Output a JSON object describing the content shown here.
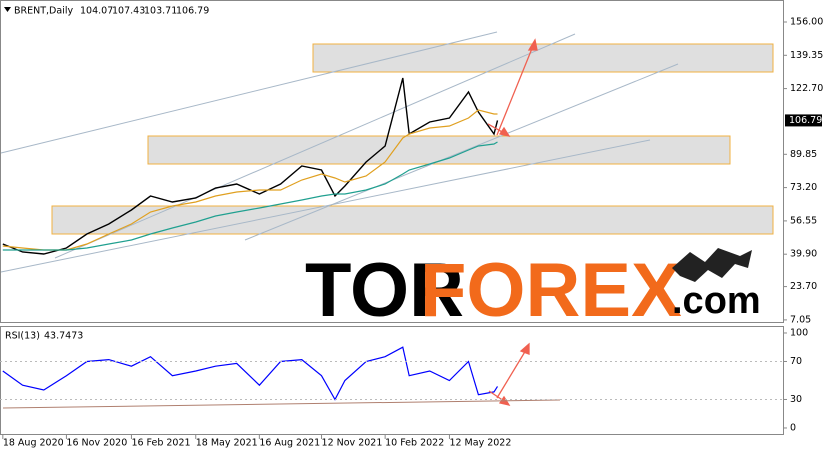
{
  "chart_data": [
    {
      "type": "line",
      "title": "BRENT,Daily",
      "ohlc": [
        104.07,
        107.43,
        103.71,
        106.79
      ],
      "x": [
        "2020-08-18",
        "2020-09-15",
        "2020-10-15",
        "2020-11-16",
        "2020-12-15",
        "2021-01-15",
        "2021-02-16",
        "2021-03-15",
        "2021-04-15",
        "2021-05-18",
        "2021-06-15",
        "2021-07-15",
        "2021-08-16",
        "2021-09-15",
        "2021-10-15",
        "2021-11-12",
        "2021-12-01",
        "2021-12-15",
        "2022-01-14",
        "2022-02-10",
        "2022-03-07",
        "2022-03-16",
        "2022-04-14",
        "2022-05-12",
        "2022-06-08",
        "2022-06-22",
        "2022-07-14",
        "2022-07-19"
      ],
      "series": [
        {
          "color": "#000000",
          "values": [
            45,
            41,
            40,
            43,
            50,
            55,
            62,
            69,
            66,
            68,
            73,
            75,
            70,
            75,
            84,
            82,
            69,
            74,
            86,
            94,
            128,
            100,
            106,
            108,
            121,
            111,
            100,
            106.79
          ]
        },
        {
          "color": "#e0a020",
          "values": [
            44,
            43,
            42,
            42,
            45,
            50,
            55,
            61,
            64,
            66,
            69,
            71,
            72,
            72,
            77,
            80,
            78,
            76,
            79,
            86,
            98,
            100,
            103,
            104,
            108,
            112,
            110,
            110
          ]
        },
        {
          "color": "#20a090",
          "values": [
            42,
            42,
            42,
            42,
            43,
            45,
            47,
            50,
            53,
            56,
            59,
            61,
            63,
            65,
            67,
            69,
            70,
            70,
            72,
            75,
            80,
            82,
            85,
            88,
            92,
            94,
            95,
            96
          ]
        }
      ],
      "zones": [
        {
          "low": 131,
          "high": 145
        },
        {
          "low": 85,
          "high": 99
        },
        {
          "low": 50,
          "high": 64
        }
      ],
      "zone_color": "#d9d9d9",
      "zone_border": "#f0b040",
      "xlim": [
        "2020-08-14",
        "2023-08-27"
      ],
      "ylim": [
        6,
        167
      ],
      "yticks": [
        {
          "value": 156,
          "label": "156.00"
        },
        139.35,
        {
          "value": 122.7,
          "label": "122.70"
        },
        89.85,
        {
          "value": 73.2,
          "label": "73.20"
        },
        56.55,
        {
          "value": 39.9,
          "label": "39.90"
        },
        {
          "value": 23.7,
          "label": "23.70"
        },
        7.05
      ],
      "watermark": [
        "TOR",
        "FOREX",
        ".com"
      ]
    },
    {
      "type": "line",
      "title": "RSI(13)",
      "value": 43.7473,
      "x": [
        "2020-08-18",
        "2020-09-15",
        "2020-10-15",
        "2020-11-16",
        "2020-12-15",
        "2021-01-15",
        "2021-02-16",
        "2021-03-15",
        "2021-04-15",
        "2021-05-18",
        "2021-06-15",
        "2021-07-15",
        "2021-08-16",
        "2021-09-15",
        "2021-10-15",
        "2021-11-12",
        "2021-12-01",
        "2021-12-15",
        "2022-01-14",
        "2022-02-10",
        "2022-03-07",
        "2022-03-16",
        "2022-04-14",
        "2022-05-12",
        "2022-06-08",
        "2022-06-22",
        "2022-07-14",
        "2022-07-19"
      ],
      "series": [
        {
          "color": "#0000ff",
          "values": [
            60,
            45,
            40,
            55,
            70,
            72,
            65,
            75,
            55,
            60,
            65,
            68,
            45,
            70,
            72,
            55,
            30,
            50,
            70,
            75,
            85,
            55,
            60,
            50,
            70,
            35,
            38,
            43.7473
          ]
        }
      ],
      "xlim": [
        "2020-08-14",
        "2023-08-27"
      ],
      "ylim": [
        -7.4,
        106.3
      ],
      "yticks": [
        100,
        70,
        30,
        0
      ],
      "xticks": [
        {
          "value": "2020-08-18",
          "label": "18 Aug 2020"
        },
        {
          "value": "2020-11-16",
          "label": "16 Nov 2020"
        },
        {
          "value": "2021-02-16",
          "label": "16 Feb 2021"
        },
        {
          "value": "2021-05-18",
          "label": "18 May 2021"
        },
        {
          "value": "2021-08-16",
          "label": "16 Aug 2021"
        },
        {
          "value": "2021-11-12",
          "label": "12 Nov 2021"
        },
        {
          "value": "2022-02-10",
          "label": "10 Feb 2022"
        },
        {
          "value": "2022-05-12",
          "label": "12 May 2022"
        }
      ]
    }
  ]
}
